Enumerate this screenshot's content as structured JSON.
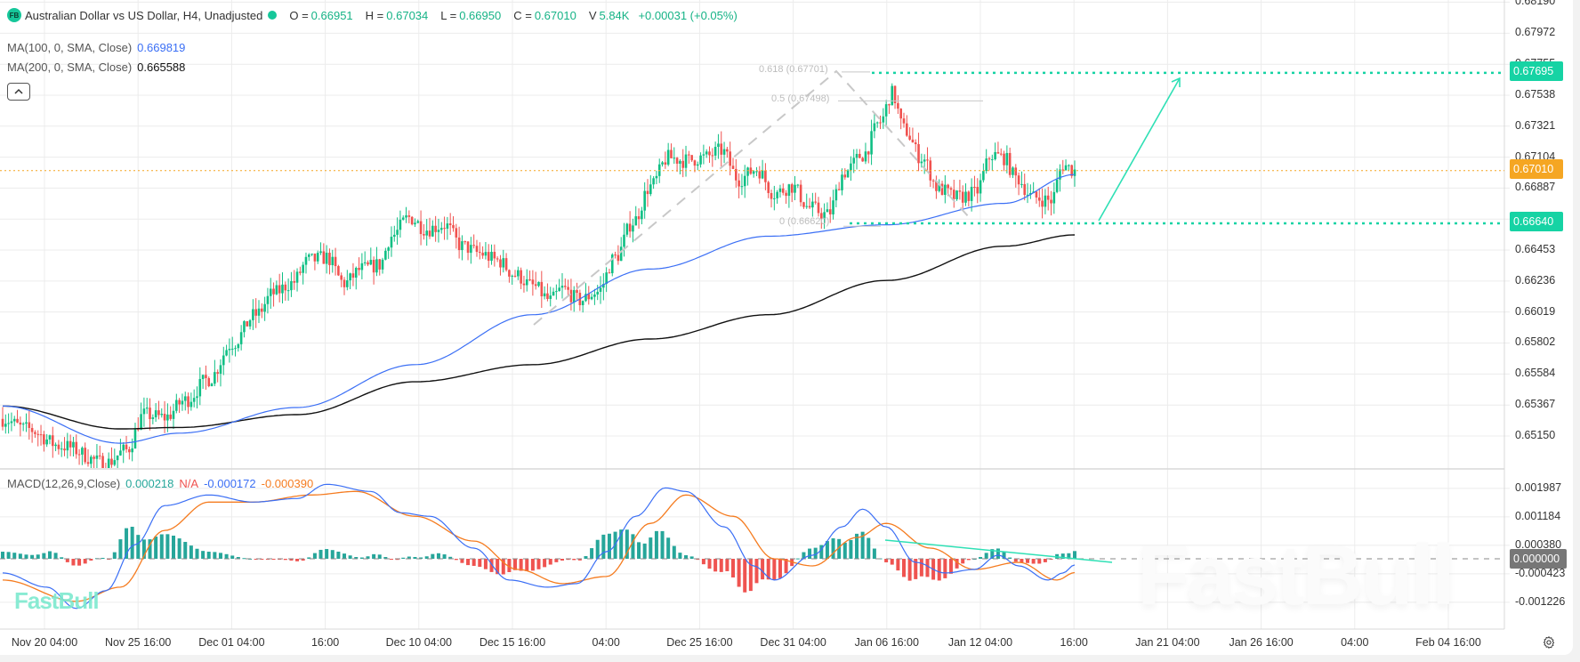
{
  "header": {
    "symbol_badge": "FB",
    "title": "Australian Dollar vs US Dollar, H4, Unadjusted",
    "ohlc": [
      {
        "key": "O =",
        "value": "0.66951"
      },
      {
        "key": "H =",
        "value": "0.67034"
      },
      {
        "key": "L =",
        "value": "0.66950"
      },
      {
        "key": "C =",
        "value": "0.67010"
      }
    ],
    "volume_key": "V",
    "volume_value": "5.84K",
    "change": "+0.00031 (+0.05%)"
  },
  "indicators": {
    "ma100": {
      "label": "MA(100, 0, SMA, Close)",
      "value": "0.669819",
      "color": "#3b6ff5"
    },
    "ma200": {
      "label": "MA(200, 0, SMA, Close)",
      "value": "0.665588",
      "color": "#111111"
    },
    "macd": {
      "label": "MACD(12,26,9,Close)",
      "hist": "0.000218",
      "na": "N/A",
      "macd": "-0.000172",
      "signal": "-0.000390",
      "colors": {
        "hist": "#26a69a",
        "na": "#ef5350",
        "macd": "#3b6ff5",
        "signal": "#f57c20"
      }
    }
  },
  "price_axis": {
    "labels": [
      "0.68190",
      "0.67972",
      "0.67755",
      "0.67538",
      "0.67321",
      "0.67104",
      "0.66887",
      "0.66453",
      "0.66236",
      "0.66019",
      "0.65802",
      "0.65584",
      "0.65367",
      "0.65150"
    ],
    "tags": [
      {
        "value": "0.67695",
        "color": "#16d3a4"
      },
      {
        "value": "0.67010",
        "color": "#f5a623"
      },
      {
        "value": "0.66640",
        "color": "#16d3a4"
      }
    ]
  },
  "macd_axis": {
    "labels": [
      "0.001987",
      "0.001184",
      "0.000380",
      "-0.000423",
      "-0.001226"
    ],
    "zero_tag": "0.000000"
  },
  "time_axis": {
    "labels": [
      "Nov 20 04:00",
      "Nov 25 16:00",
      "Dec 01 04:00",
      "16:00",
      "Dec 10 04:00",
      "Dec 15 16:00",
      "04:00",
      "Dec 25 16:00",
      "Dec 31 04:00",
      "Jan 06 16:00",
      "Jan 12 04:00",
      "16:00",
      "Jan 21 04:00",
      "Jan 26 16:00",
      "04:00",
      "Feb 04 16:00"
    ]
  },
  "drawings": {
    "fib_levels": [
      {
        "label": "0.618 (0.67701)",
        "price": 0.67701
      },
      {
        "label": "0.5 (0.67498)",
        "price": 0.67498
      },
      {
        "label": "0 (0.66620)",
        "price": 0.6662
      }
    ],
    "resistance": 0.67695,
    "support": 0.6664,
    "last_price": 0.6701
  },
  "watermark": "FastBull",
  "chart_data": {
    "type": "candlestick",
    "title": "Australian Dollar vs US Dollar, H4, Unadjusted",
    "x_range": [
      "Nov 20 04:00",
      "Jan 14 16:00"
    ],
    "ylim": [
      0.6505,
      0.682
    ],
    "price_waypoints": [
      [
        0,
        0.6527
      ],
      [
        8,
        0.652
      ],
      [
        20,
        0.6508
      ],
      [
        35,
        0.6496
      ],
      [
        42,
        0.6505
      ],
      [
        48,
        0.653
      ],
      [
        55,
        0.6528
      ],
      [
        62,
        0.654
      ],
      [
        70,
        0.6555
      ],
      [
        78,
        0.658
      ],
      [
        86,
        0.66
      ],
      [
        92,
        0.6615
      ],
      [
        98,
        0.6622
      ],
      [
        104,
        0.6638
      ],
      [
        110,
        0.664
      ],
      [
        116,
        0.6622
      ],
      [
        122,
        0.6632
      ],
      [
        128,
        0.6635
      ],
      [
        132,
        0.6655
      ],
      [
        138,
        0.6668
      ],
      [
        144,
        0.666
      ],
      [
        150,
        0.6663
      ],
      [
        156,
        0.6648
      ],
      [
        162,
        0.6643
      ],
      [
        168,
        0.6638
      ],
      [
        174,
        0.6628
      ],
      [
        180,
        0.662
      ],
      [
        186,
        0.661
      ],
      [
        190,
        0.6618
      ],
      [
        196,
        0.661
      ],
      [
        202,
        0.6616
      ],
      [
        208,
        0.664
      ],
      [
        214,
        0.6665
      ],
      [
        220,
        0.669
      ],
      [
        226,
        0.671
      ],
      [
        232,
        0.6708
      ],
      [
        238,
        0.671
      ],
      [
        244,
        0.6715
      ],
      [
        250,
        0.6695
      ],
      [
        256,
        0.6702
      ],
      [
        262,
        0.6685
      ],
      [
        268,
        0.669
      ],
      [
        274,
        0.6675
      ],
      [
        280,
        0.667
      ],
      [
        286,
        0.67
      ],
      [
        292,
        0.6712
      ],
      [
        298,
        0.6735
      ],
      [
        302,
        0.6755
      ],
      [
        306,
        0.673
      ],
      [
        312,
        0.671
      ],
      [
        318,
        0.6688
      ],
      [
        324,
        0.6682
      ],
      [
        330,
        0.6685
      ],
      [
        336,
        0.6712
      ],
      [
        340,
        0.671
      ],
      [
        344,
        0.6696
      ],
      [
        350,
        0.6682
      ],
      [
        356,
        0.668
      ],
      [
        360,
        0.6705
      ],
      [
        364,
        0.6701
      ]
    ],
    "ma100_points": [
      [
        0,
        0.6536
      ],
      [
        40,
        0.651
      ],
      [
        60,
        0.6517
      ],
      [
        100,
        0.6535
      ],
      [
        140,
        0.6565
      ],
      [
        180,
        0.66
      ],
      [
        220,
        0.6632
      ],
      [
        260,
        0.6655
      ],
      [
        300,
        0.6663
      ],
      [
        340,
        0.6678
      ],
      [
        364,
        0.66982
      ]
    ],
    "ma200_points": [
      [
        0,
        0.6536
      ],
      [
        40,
        0.652
      ],
      [
        60,
        0.6521
      ],
      [
        100,
        0.653
      ],
      [
        140,
        0.6553
      ],
      [
        180,
        0.6565
      ],
      [
        220,
        0.6583
      ],
      [
        260,
        0.66
      ],
      [
        300,
        0.6624
      ],
      [
        340,
        0.6648
      ],
      [
        364,
        0.66559
      ]
    ],
    "macd_line": [
      [
        0,
        -0.0004
      ],
      [
        15,
        -0.0008
      ],
      [
        25,
        -0.0014
      ],
      [
        35,
        -0.0009
      ],
      [
        45,
        0.0004
      ],
      [
        55,
        0.0015
      ],
      [
        70,
        0.0018
      ],
      [
        85,
        0.0016
      ],
      [
        100,
        0.0017
      ],
      [
        110,
        0.0021
      ],
      [
        125,
        0.0019
      ],
      [
        135,
        0.0013
      ],
      [
        145,
        0.0012
      ],
      [
        160,
        0.0003
      ],
      [
        172,
        -0.0006
      ],
      [
        185,
        -0.0008
      ],
      [
        195,
        -0.0007
      ],
      [
        205,
        0.0002
      ],
      [
        215,
        0.0012
      ],
      [
        225,
        0.002
      ],
      [
        232,
        0.0019
      ],
      [
        245,
        0.0009
      ],
      [
        255,
        -0.0002
      ],
      [
        262,
        -0.0006
      ],
      [
        275,
        0.0001
      ],
      [
        285,
        0.0009
      ],
      [
        292,
        0.0014
      ],
      [
        300,
        0.0009
      ],
      [
        310,
        -0.0001
      ],
      [
        320,
        -0.0004
      ],
      [
        330,
        -0.0003
      ],
      [
        338,
        0.0001
      ],
      [
        345,
        -0.0002
      ],
      [
        355,
        -0.0006
      ],
      [
        360,
        -0.0004
      ],
      [
        364,
        -0.000172
      ]
    ],
    "signal_line": [
      [
        0,
        -0.0006
      ],
      [
        25,
        -0.0012
      ],
      [
        40,
        -0.0008
      ],
      [
        55,
        0.0008
      ],
      [
        70,
        0.0016
      ],
      [
        85,
        0.0016
      ],
      [
        105,
        0.0018
      ],
      [
        120,
        0.0019
      ],
      [
        140,
        0.0012
      ],
      [
        160,
        0.0005
      ],
      [
        175,
        -0.0003
      ],
      [
        190,
        -0.0007
      ],
      [
        205,
        -0.0005
      ],
      [
        220,
        0.001
      ],
      [
        232,
        0.0018
      ],
      [
        248,
        0.0012
      ],
      [
        262,
        0.0
      ],
      [
        275,
        -0.0002
      ],
      [
        290,
        0.0006
      ],
      [
        300,
        0.001
      ],
      [
        315,
        0.0003
      ],
      [
        330,
        -0.0003
      ],
      [
        345,
        -0.0001
      ],
      [
        358,
        -0.0006
      ],
      [
        364,
        -0.00039
      ]
    ]
  }
}
